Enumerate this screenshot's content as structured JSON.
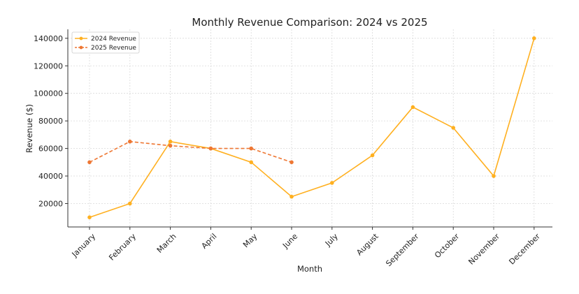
{
  "chart_data": {
    "type": "line",
    "title": "Monthly Revenue Comparison: 2024 vs 2025",
    "xlabel": "Month",
    "ylabel": "Revenue ($)",
    "categories": [
      "January",
      "February",
      "March",
      "April",
      "May",
      "June",
      "July",
      "August",
      "September",
      "October",
      "November",
      "December"
    ],
    "y_ticks": [
      20000,
      40000,
      60000,
      80000,
      100000,
      120000,
      140000
    ],
    "ylim": [
      3000,
      146500
    ],
    "grid": true,
    "legend_position": "top-left",
    "series": [
      {
        "name": "2024 Revenue",
        "color": "#FFB020",
        "line_style": "solid",
        "values": [
          10000,
          20000,
          65000,
          60000,
          50000,
          25000,
          35000,
          55000,
          90000,
          75000,
          40000,
          140000
        ]
      },
      {
        "name": "2025 Revenue",
        "color": "#EE7733",
        "line_style": "dashed",
        "values": [
          50000,
          65000,
          62000,
          60000,
          60000,
          50000,
          null,
          null,
          null,
          null,
          null,
          null
        ]
      }
    ]
  }
}
